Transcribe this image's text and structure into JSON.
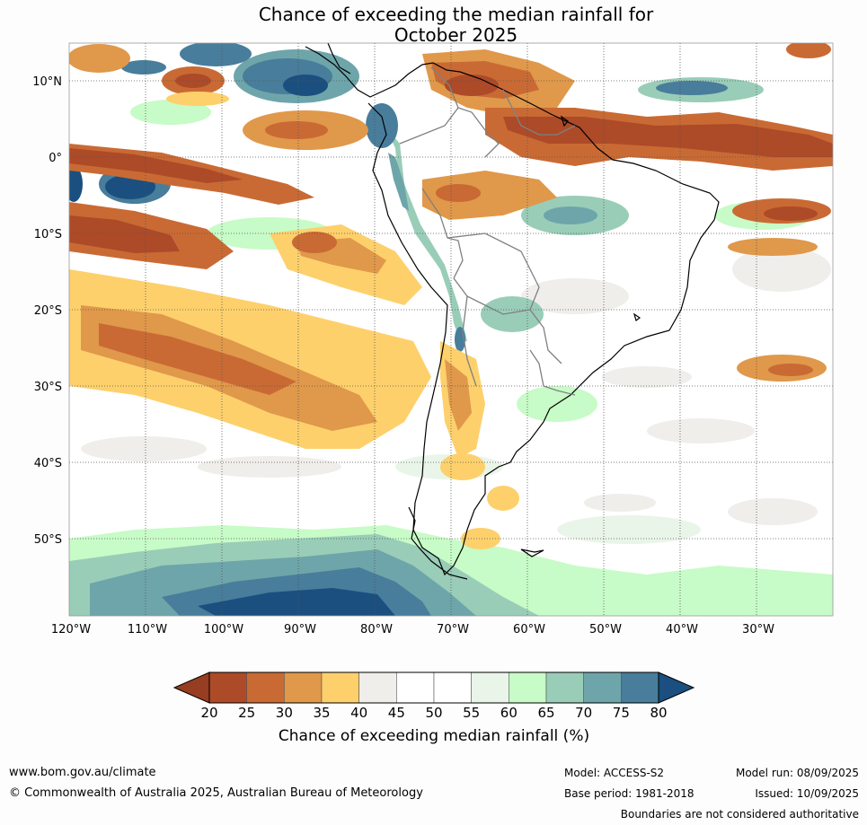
{
  "title": {
    "line1": "Chance of exceeding the median rainfall for",
    "line2": "October 2025"
  },
  "map": {
    "lat_labels": [
      "10°N",
      "0°",
      "10°S",
      "20°S",
      "30°S",
      "40°S",
      "50°S"
    ],
    "lon_labels": [
      "120°W",
      "110°W",
      "100°W",
      "90°W",
      "80°W",
      "70°W",
      "60°W",
      "50°W",
      "40°W",
      "30°W"
    ],
    "extent": {
      "lon_min": -120,
      "lon_max": -20,
      "lat_min": -60,
      "lat_max": 15
    }
  },
  "colorbar": {
    "ticks": [
      "20",
      "25",
      "30",
      "35",
      "40",
      "45",
      "50",
      "55",
      "60",
      "65",
      "70",
      "75",
      "80"
    ],
    "colors": [
      "#ad4a28",
      "#c96a34",
      "#e0984a",
      "#fdd06c",
      "#efeeeb",
      "#ffffff",
      "#ffffff",
      "#e9f5e9",
      "#c7fbc7",
      "#99cdb8",
      "#6ea5aa",
      "#487d9b"
    ],
    "under_color": "#963d22",
    "over_color": "#1a4f7f",
    "label": "Chance of exceeding median rainfall (%)"
  },
  "footer": {
    "website": "www.bom.gov.au/climate",
    "copyright": "© Commonwealth of Australia 2025, Australian Bureau of Meteorology",
    "model": "Model: ACCESS-S2",
    "base_period": "Base period: 1981-2018",
    "model_run": "Model run: 08/09/2025",
    "issued": "Issued: 10/09/2025",
    "disclaimer": "Boundaries are not considered authoritative"
  }
}
